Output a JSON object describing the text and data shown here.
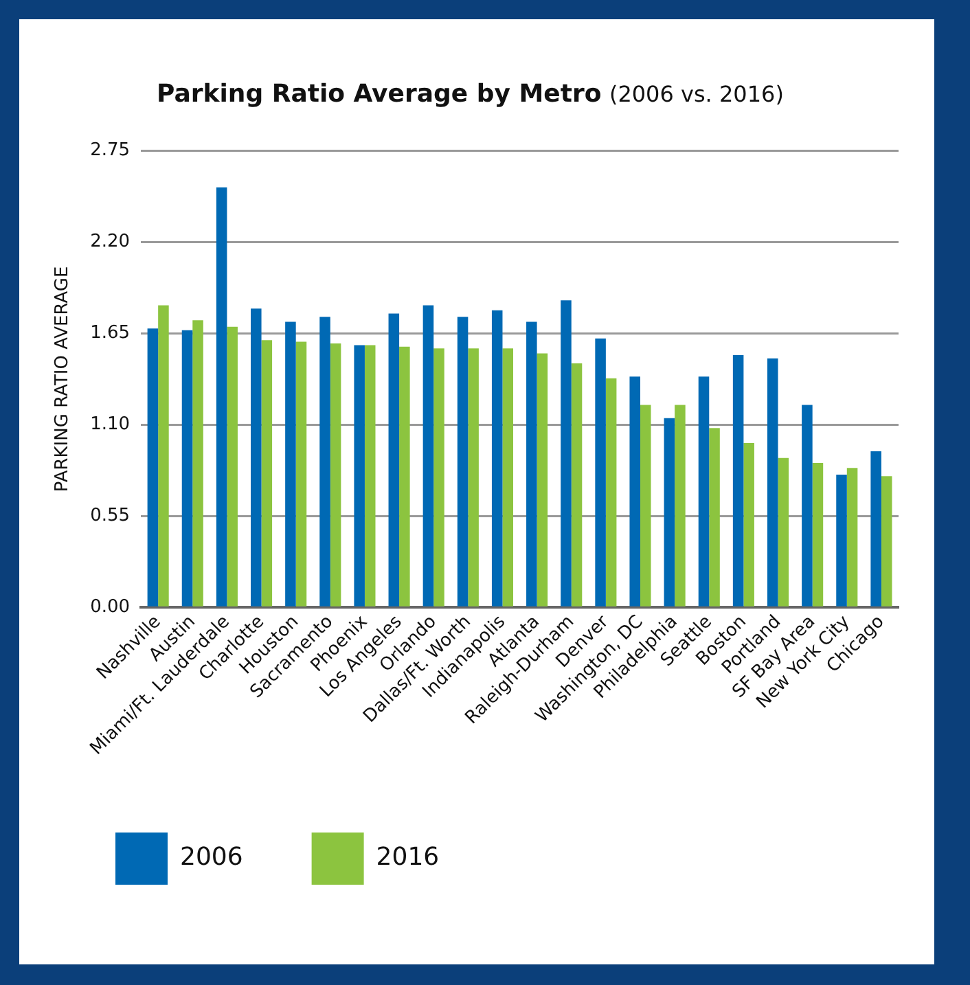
{
  "chart_data": {
    "type": "bar",
    "title": "Parking Ratio Average by Metro",
    "subtitle": "(2006 vs. 2016)",
    "ylabel": "PARKING RATIO AVERAGE",
    "categories": [
      "Nashville",
      "Austin",
      "Miami/Ft. Lauderdale",
      "Charlotte",
      "Houston",
      "Sacramento",
      "Phoenix",
      "Los Angeles",
      "Orlando",
      "Dallas/Ft. Worth",
      "Indianapolis",
      "Atlanta",
      "Raleigh-Durham",
      "Denver",
      "Washington, DC",
      "Philadelphia",
      "Seattle",
      "Boston",
      "Portland",
      "SF Bay Area",
      "New York City",
      "Chicago"
    ],
    "series": [
      {
        "name": "2006",
        "color": "#0069b4",
        "values": [
          1.68,
          1.67,
          2.53,
          1.8,
          1.72,
          1.75,
          1.58,
          1.77,
          1.82,
          1.75,
          1.79,
          1.72,
          1.85,
          1.62,
          1.39,
          1.14,
          1.39,
          1.52,
          1.5,
          1.22,
          0.8,
          0.94
        ]
      },
      {
        "name": "2016",
        "color": "#8cc43f",
        "values": [
          1.82,
          1.73,
          1.69,
          1.61,
          1.6,
          1.59,
          1.58,
          1.57,
          1.56,
          1.56,
          1.56,
          1.53,
          1.47,
          1.38,
          1.22,
          1.22,
          1.08,
          0.99,
          0.9,
          0.87,
          0.84,
          0.79
        ]
      }
    ],
    "ylim": [
      0,
      2.75
    ],
    "yticks": [
      {
        "value": 0,
        "label": "0.00"
      },
      {
        "value": 0.55,
        "label": "0.55"
      },
      {
        "value": 1.1,
        "label": "1.10"
      },
      {
        "value": 1.65,
        "label": "1.65"
      },
      {
        "value": 2.2,
        "label": "2.20"
      },
      {
        "value": 2.75,
        "label": "2.75"
      }
    ],
    "grid": "y",
    "legend": "bottom left"
  }
}
